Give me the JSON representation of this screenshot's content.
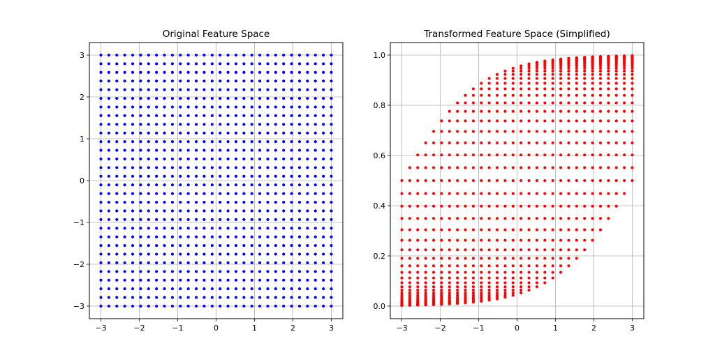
{
  "chart_data": [
    {
      "type": "scatter",
      "title": "Original Feature Space",
      "xlabel": "",
      "ylabel": "",
      "xlim": [
        -3.3,
        3.3
      ],
      "ylim": [
        -3.3,
        3.3
      ],
      "xticks": [
        -3,
        -2,
        -1,
        0,
        1,
        2,
        3
      ],
      "xtick_labels": [
        "−3",
        "−2",
        "−1",
        "0",
        "1",
        "2",
        "3"
      ],
      "yticks": [
        -3,
        -2,
        -1,
        0,
        1,
        2,
        3
      ],
      "ytick_labels": [
        "−3",
        "−2",
        "−1",
        "0",
        "1",
        "2",
        "3"
      ],
      "grid": true,
      "marker_color": "#0000ff",
      "marker_style": "filled dots, open circles along the grid edges",
      "points": {
        "x_range": [
          -3,
          3
        ],
        "y_range": [
          -3,
          3
        ],
        "count_per_axis": 30,
        "spacing": "uniform grid"
      }
    },
    {
      "type": "scatter",
      "title": "Transformed Feature Space (Simplified)",
      "xlabel": "",
      "ylabel": "",
      "xlim": [
        -3.3,
        3.3
      ],
      "ylim": [
        -0.05,
        1.05
      ],
      "xticks": [
        -3,
        -2,
        -1,
        0,
        1,
        2,
        3
      ],
      "xtick_labels": [
        "−3",
        "−2",
        "−1",
        "0",
        "1",
        "2",
        "3"
      ],
      "yticks": [
        0.0,
        0.2,
        0.4,
        0.6,
        0.8,
        1.0
      ],
      "ytick_labels": [
        "0.0",
        "0.2",
        "0.4",
        "0.6",
        "0.8",
        "1.0"
      ],
      "grid": true,
      "marker_color": "#ff0000",
      "marker_style": "filled dots",
      "transform": "x' = x, y' = sigmoid(x + y), applied to the 30 x 30 grid of the original space"
    }
  ]
}
